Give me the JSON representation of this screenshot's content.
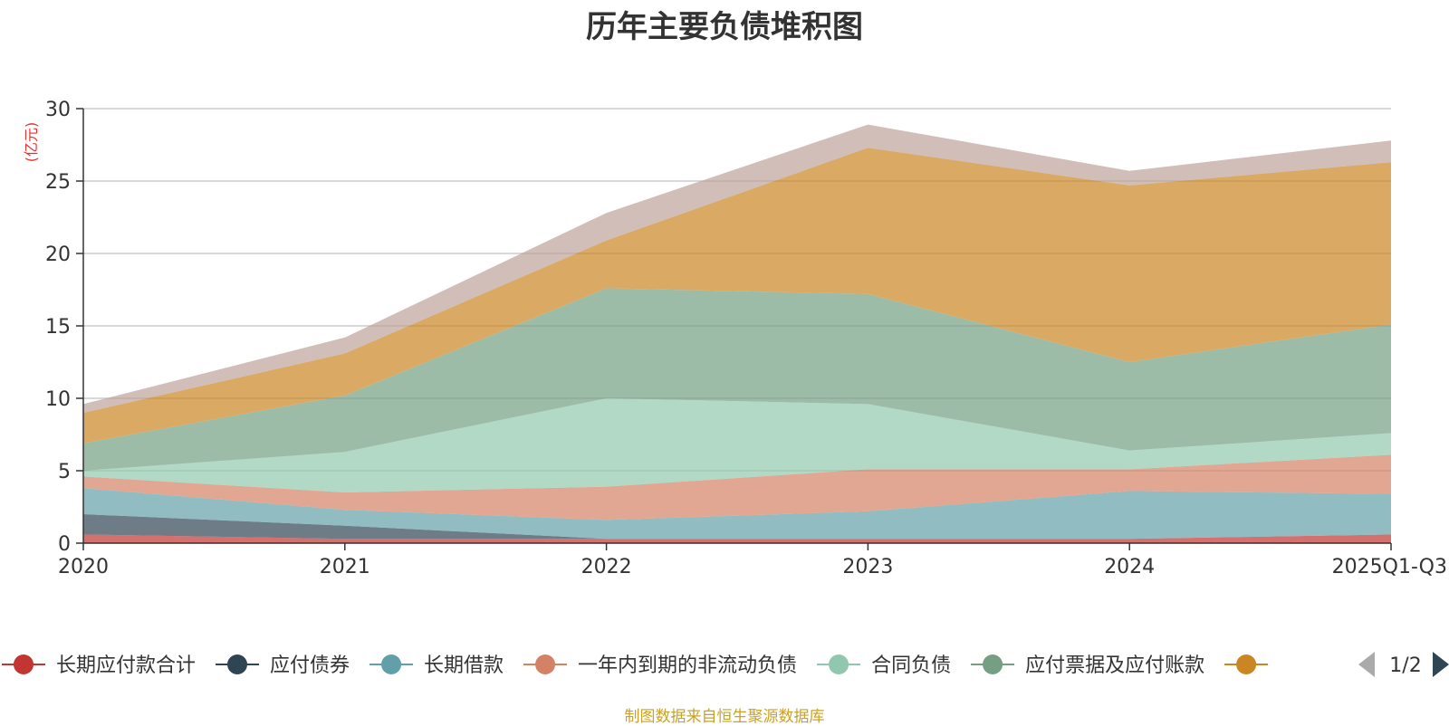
{
  "chart_data": {
    "type": "area",
    "stacked": true,
    "title": "历年主要负债堆积图",
    "unit_label": "(亿元)",
    "categories": [
      "2020",
      "2021",
      "2022",
      "2023",
      "2024",
      "2025Q1-Q3"
    ],
    "ylim": [
      0,
      30
    ],
    "yticks": [
      0,
      5,
      10,
      15,
      20,
      25,
      30
    ],
    "grid": true,
    "series": [
      {
        "name": "长期应付款合计",
        "color": "#c23531",
        "values": [
          0.6,
          0.3,
          0.3,
          0.3,
          0.3,
          0.6
        ]
      },
      {
        "name": "应付债券",
        "color": "#2f4554",
        "values": [
          1.4,
          0.9,
          0.0,
          0.0,
          0.0,
          0.0
        ]
      },
      {
        "name": "长期借款",
        "color": "#61a0a8",
        "values": [
          1.8,
          1.1,
          1.3,
          1.9,
          3.3,
          2.8
        ]
      },
      {
        "name": "一年内到期的非流动负债",
        "color": "#d48265",
        "values": [
          0.8,
          1.2,
          2.3,
          2.9,
          1.5,
          2.7
        ]
      },
      {
        "name": "合同负债",
        "color": "#91c7ae",
        "values": [
          0.4,
          2.8,
          6.1,
          4.5,
          1.3,
          1.5
        ]
      },
      {
        "name": "应付票据及应付账款",
        "color": "#749f83",
        "values": [
          1.9,
          3.9,
          7.6,
          7.6,
          6.1,
          7.5
        ]
      },
      {
        "name": "",
        "color": "#ca8622",
        "values": [
          2.1,
          2.9,
          3.3,
          10.1,
          12.2,
          11.2
        ]
      },
      {
        "name": "",
        "color": "#bda29a",
        "values": [
          0.6,
          1.1,
          1.9,
          1.6,
          1.0,
          1.5
        ]
      }
    ],
    "legend": {
      "position": "bottom",
      "page": "1/2"
    }
  },
  "source_note": "制图数据来自恒生聚源数据库"
}
